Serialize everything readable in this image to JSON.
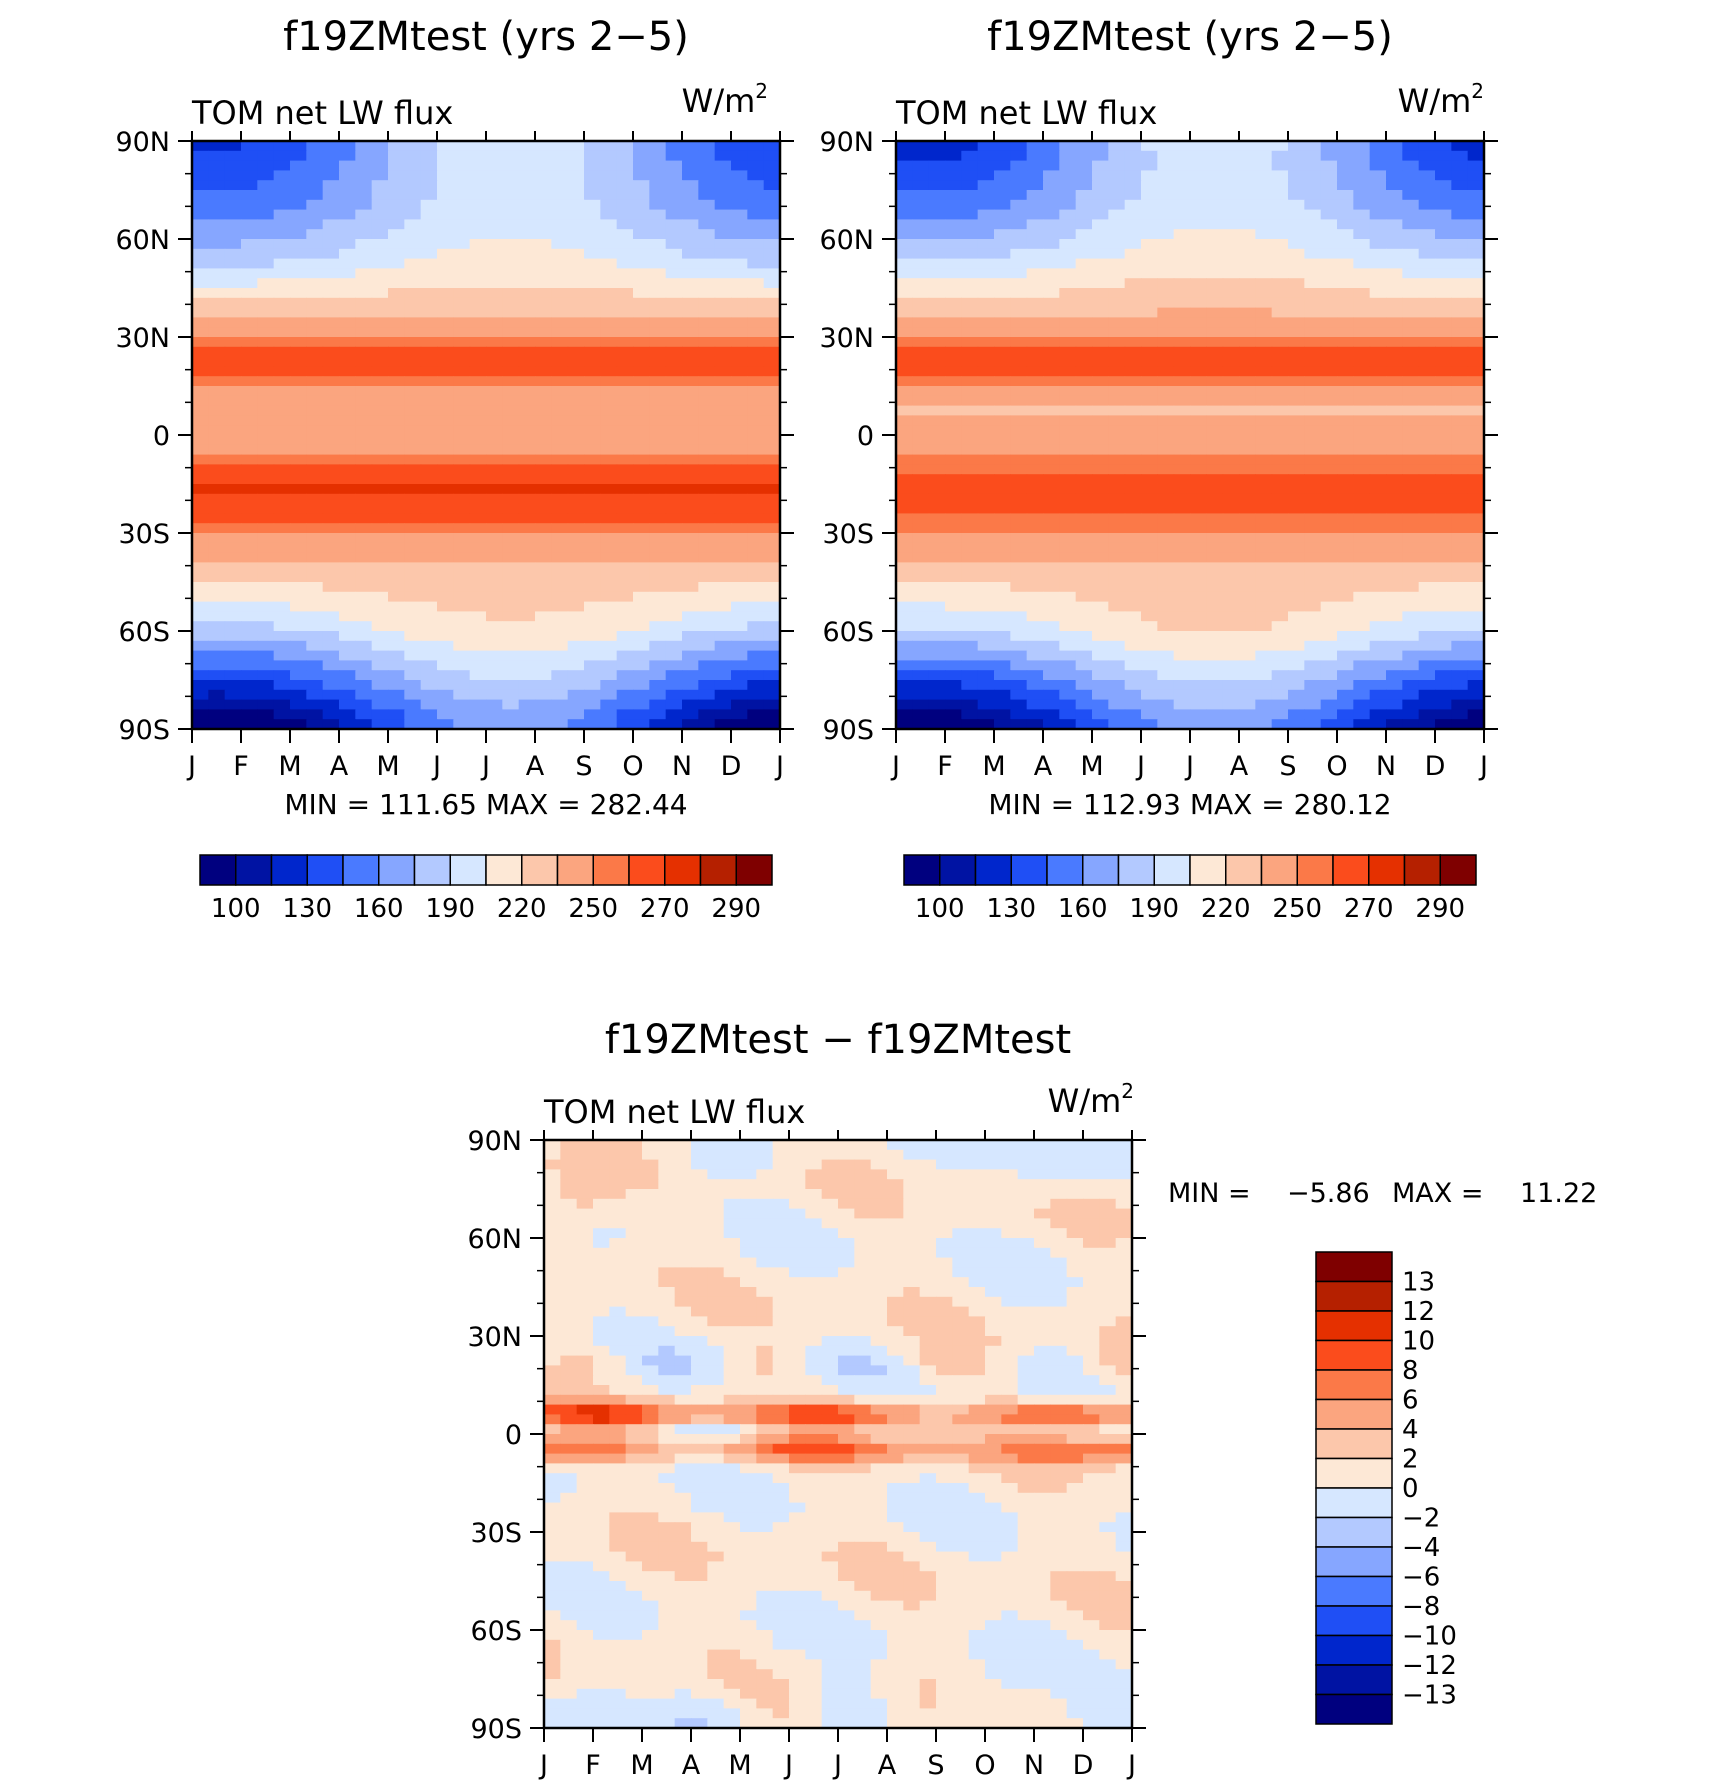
{
  "colors": {
    "abs_levels": [
      "#00007f",
      "#0013a3",
      "#0026cc",
      "#1f4ff5",
      "#4a7aff",
      "#86a6ff",
      "#b3c9ff",
      "#d6e7ff",
      "#fde8d6",
      "#fcc7ab",
      "#fba57f",
      "#fb7948",
      "#fb4c1c",
      "#e53000",
      "#b52000",
      "#7f0000"
    ],
    "diff_levels": [
      "#00007f",
      "#0013a3",
      "#0026cc",
      "#1f4ff5",
      "#4a7aff",
      "#86a6ff",
      "#b3c9ff",
      "#d6e7ff",
      "#fde8d6",
      "#fcc7ab",
      "#fba57f",
      "#fb7948",
      "#fb4c1c",
      "#e53000",
      "#b52000",
      "#7f0000"
    ]
  },
  "chart_data": [
    {
      "type": "heatmap",
      "title": "f19ZMtest (yrs 2−5)",
      "left_label": "TOM net LW flux",
      "units_base": "W/m",
      "units_sup": "2",
      "x_ticks": [
        "J",
        "F",
        "M",
        "A",
        "M",
        "J",
        "J",
        "A",
        "S",
        "O",
        "N",
        "D",
        "J"
      ],
      "y_ticks": [
        "90N",
        "60N",
        "30N",
        "0",
        "30S",
        "60S",
        "90S"
      ],
      "ylim": [
        -90,
        90
      ],
      "stats": "MIN = 111.65 MAX = 282.44",
      "colorbar_labels": [
        "100",
        "130",
        "160",
        "190",
        "220",
        "250",
        "270",
        "290"
      ],
      "latitude_profile": [
        {
          "lat": 85,
          "value": 165
        },
        {
          "lat": 70,
          "value": 175
        },
        {
          "lat": 55,
          "value": 195
        },
        {
          "lat": 40,
          "value": 225
        },
        {
          "lat": 22,
          "value": 270
        },
        {
          "lat": 8,
          "value": 235
        },
        {
          "lat": -5,
          "value": 250
        },
        {
          "lat": -15,
          "value": 272
        },
        {
          "lat": -25,
          "value": 262
        },
        {
          "lat": -45,
          "value": 225
        },
        {
          "lat": -60,
          "value": 200
        },
        {
          "lat": -75,
          "value": 160
        },
        {
          "lat": -88,
          "value": 125
        }
      ]
    },
    {
      "type": "heatmap",
      "title": "f19ZMtest (yrs 2−5)",
      "left_label": "TOM net LW flux",
      "units_base": "W/m",
      "units_sup": "2",
      "x_ticks": [
        "J",
        "F",
        "M",
        "A",
        "M",
        "J",
        "J",
        "A",
        "S",
        "O",
        "N",
        "D",
        "J"
      ],
      "y_ticks": [
        "90N",
        "60N",
        "30N",
        "0",
        "30S",
        "60S",
        "90S"
      ],
      "ylim": [
        -90,
        90
      ],
      "stats": "MIN = 112.93 MAX = 280.12",
      "colorbar_labels": [
        "100",
        "130",
        "160",
        "190",
        "220",
        "250",
        "270",
        "290"
      ],
      "latitude_profile": [
        {
          "lat": 85,
          "value": 162
        },
        {
          "lat": 70,
          "value": 175
        },
        {
          "lat": 55,
          "value": 198
        },
        {
          "lat": 40,
          "value": 228
        },
        {
          "lat": 22,
          "value": 268
        },
        {
          "lat": 8,
          "value": 232
        },
        {
          "lat": -5,
          "value": 245
        },
        {
          "lat": -15,
          "value": 270
        },
        {
          "lat": -25,
          "value": 260
        },
        {
          "lat": -45,
          "value": 225
        },
        {
          "lat": -60,
          "value": 205
        },
        {
          "lat": -75,
          "value": 162
        },
        {
          "lat": -88,
          "value": 128
        }
      ]
    },
    {
      "type": "heatmap",
      "title": "f19ZMtest − f19ZMtest",
      "left_label": "TOM net LW flux",
      "units_base": "W/m",
      "units_sup": "2",
      "x_ticks": [
        "J",
        "F",
        "M",
        "A",
        "M",
        "J",
        "J",
        "A",
        "S",
        "O",
        "N",
        "D",
        "J"
      ],
      "y_ticks": [
        "90N",
        "60N",
        "30N",
        "0",
        "30S",
        "60S",
        "90S"
      ],
      "ylim": [
        -90,
        90
      ],
      "stats_min_label": "MIN =",
      "stats_min": "−5.86",
      "stats_max_label": "MAX =",
      "stats_max": "11.22",
      "colorbar_labels": [
        "13",
        "12",
        "10",
        "8",
        "6",
        "4",
        "2",
        "0",
        "−2",
        "−4",
        "−6",
        "−8",
        "−10",
        "−12",
        "−13"
      ]
    }
  ]
}
